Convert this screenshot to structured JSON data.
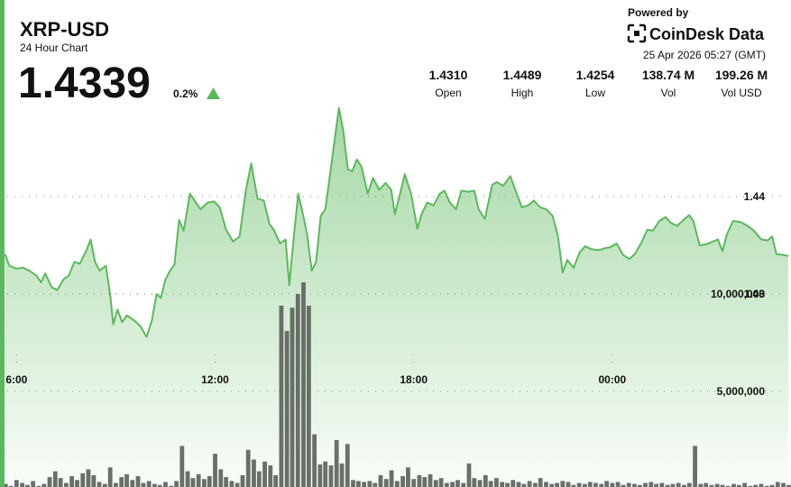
{
  "header": {
    "title": "XRP-USD",
    "subtitle": "24 Hour Chart",
    "price": "1.4339",
    "change": "0.2%"
  },
  "branding": {
    "powered_by": "Powered by",
    "brand": "CoinDesk Data",
    "timestamp": "25 Apr 2026 05:27 (GMT)"
  },
  "stats": [
    {
      "value": "1.4310",
      "label": "Open"
    },
    {
      "value": "1.4489",
      "label": "High"
    },
    {
      "value": "1.4254",
      "label": "Low"
    },
    {
      "value": "138.74 M",
      "label": "Vol"
    },
    {
      "value": "199.26 M",
      "label": "Vol USD"
    }
  ],
  "chart_data": [
    {
      "type": "area",
      "color": "#5cb85c",
      "grid": true,
      "xlim": [
        5.5,
        29.4
      ],
      "ylim": [
        1.41,
        1.45
      ],
      "xticks": [
        {
          "value": 6,
          "label": "6:00"
        },
        {
          "value": 12,
          "label": "12:00"
        },
        {
          "value": 18,
          "label": "18:00"
        },
        {
          "value": 24,
          "label": "00:00"
        }
      ],
      "yticks": [
        1.43,
        1.44
      ],
      "x": [
        5.65,
        5.78,
        6.0,
        6.19,
        6.38,
        6.6,
        6.74,
        6.87,
        7.06,
        7.23,
        7.42,
        7.58,
        7.75,
        7.91,
        8.1,
        8.24,
        8.37,
        8.51,
        8.7,
        8.84,
        8.92,
        9.05,
        9.19,
        9.33,
        9.55,
        9.74,
        9.93,
        10.09,
        10.23,
        10.36,
        10.5,
        10.64,
        10.77,
        10.91,
        11.05,
        11.24,
        11.4,
        11.56,
        11.78,
        11.97,
        12.14,
        12.33,
        12.54,
        12.74,
        12.93,
        13.09,
        13.28,
        13.47,
        13.64,
        13.77,
        13.96,
        14.13,
        14.24,
        14.37,
        14.51,
        14.64,
        14.78,
        14.92,
        15.05,
        15.19,
        15.33,
        15.54,
        15.74,
        15.87,
        16.01,
        16.14,
        16.28,
        16.42,
        16.61,
        16.77,
        16.96,
        17.15,
        17.32,
        17.43,
        17.59,
        17.73,
        17.92,
        18.11,
        18.24,
        18.41,
        18.6,
        18.79,
        18.93,
        19.09,
        19.28,
        19.44,
        19.64,
        19.83,
        19.96,
        20.15,
        20.37,
        20.51,
        20.7,
        20.92,
        21.11,
        21.27,
        21.46,
        21.63,
        21.82,
        22.01,
        22.2,
        22.36,
        22.5,
        22.64,
        22.83,
        23.02,
        23.18,
        23.37,
        23.59,
        23.78,
        23.94,
        24.13,
        24.33,
        24.52,
        24.68,
        24.87,
        25.06,
        25.23,
        25.42,
        25.61,
        25.77,
        25.96,
        26.15,
        26.32,
        26.45,
        26.64,
        26.83,
        27.05,
        27.19,
        27.33,
        27.46,
        27.65,
        27.87,
        28.09,
        28.28,
        28.5,
        28.69,
        28.83,
        28.96,
        29.18,
        29.32
      ],
      "values": [
        1.4341,
        1.4329,
        1.4326,
        1.4327,
        1.4324,
        1.4319,
        1.4312,
        1.4321,
        1.4307,
        1.4304,
        1.4315,
        1.4319,
        1.4333,
        1.4331,
        1.4344,
        1.4356,
        1.4333,
        1.4324,
        1.4329,
        1.4296,
        1.4269,
        1.4284,
        1.4271,
        1.4278,
        1.4273,
        1.4267,
        1.4256,
        1.4273,
        1.43,
        1.4296,
        1.4315,
        1.4324,
        1.433,
        1.4376,
        1.4365,
        1.4403,
        1.4395,
        1.4387,
        1.4394,
        1.4395,
        1.4389,
        1.4366,
        1.4354,
        1.4359,
        1.4407,
        1.4434,
        1.4398,
        1.4396,
        1.4372,
        1.4366,
        1.4352,
        1.4356,
        1.4309,
        1.4356,
        1.4403,
        1.4384,
        1.4361,
        1.4324,
        1.4333,
        1.438,
        1.4387,
        1.444,
        1.4491,
        1.4468,
        1.4428,
        1.4426,
        1.4438,
        1.4431,
        1.4403,
        1.4419,
        1.4407,
        1.4414,
        1.4407,
        1.4382,
        1.4403,
        1.4423,
        1.4403,
        1.4367,
        1.4382,
        1.4394,
        1.4391,
        1.4403,
        1.4406,
        1.4394,
        1.4387,
        1.4406,
        1.4405,
        1.4406,
        1.4387,
        1.4377,
        1.4412,
        1.4415,
        1.4411,
        1.4421,
        1.4403,
        1.4389,
        1.4391,
        1.4396,
        1.4389,
        1.4387,
        1.438,
        1.4359,
        1.4322,
        1.4335,
        1.4327,
        1.4343,
        1.4349,
        1.4346,
        1.4345,
        1.4347,
        1.4348,
        1.4352,
        1.434,
        1.4336,
        1.4341,
        1.4352,
        1.4366,
        1.4365,
        1.4375,
        1.4379,
        1.4373,
        1.437,
        1.4376,
        1.4381,
        1.4375,
        1.435,
        1.4351,
        1.4354,
        1.4356,
        1.4344,
        1.4361,
        1.4375,
        1.4374,
        1.437,
        1.4365,
        1.4356,
        1.4355,
        1.4359,
        1.4341,
        1.434,
        1.4339
      ]
    },
    {
      "type": "bar",
      "color": "#5d635d",
      "grid": true,
      "xlim": [
        5.5,
        29.4
      ],
      "ylim": [
        0,
        20000000
      ],
      "yticks": [
        {
          "value": 5000000,
          "label": "5,000,000"
        },
        {
          "value": 10000000,
          "label": "10,000,000"
        }
      ],
      "x": [
        5.5,
        5.67,
        5.83,
        6,
        6.17,
        6.33,
        6.5,
        6.67,
        6.83,
        7,
        7.17,
        7.33,
        7.5,
        7.67,
        7.83,
        8,
        8.17,
        8.33,
        8.5,
        8.67,
        8.83,
        9,
        9.17,
        9.33,
        9.5,
        9.67,
        9.83,
        10,
        10.17,
        10.33,
        10.5,
        10.67,
        10.83,
        11,
        11.17,
        11.33,
        11.5,
        11.67,
        11.83,
        12,
        12.17,
        12.33,
        12.5,
        12.67,
        12.83,
        13,
        13.17,
        13.33,
        13.5,
        13.67,
        13.83,
        14,
        14.17,
        14.33,
        14.5,
        14.67,
        14.83,
        15,
        15.17,
        15.33,
        15.5,
        15.67,
        15.83,
        16,
        16.17,
        16.33,
        16.5,
        16.67,
        16.83,
        17,
        17.17,
        17.33,
        17.5,
        17.67,
        17.83,
        18,
        18.17,
        18.33,
        18.5,
        18.67,
        18.83,
        19,
        19.17,
        19.33,
        19.5,
        19.67,
        19.83,
        20,
        20.17,
        20.33,
        20.5,
        20.67,
        20.83,
        21,
        21.17,
        21.33,
        21.5,
        21.67,
        21.83,
        22,
        22.17,
        22.33,
        22.5,
        22.67,
        22.83,
        23,
        23.17,
        23.33,
        23.5,
        23.67,
        23.83,
        24,
        24.17,
        24.33,
        24.5,
        24.67,
        24.83,
        25,
        25.17,
        25.33,
        25.5,
        25.67,
        25.83,
        26,
        26.17,
        26.33,
        26.5,
        26.67,
        26.83,
        27,
        27.17,
        27.33,
        27.5,
        27.67,
        27.83,
        28,
        28.17,
        28.33,
        28.5,
        28.67,
        28.83,
        29,
        29.17,
        29.33
      ],
      "values": [
        350000,
        250000,
        150000,
        450000,
        300000,
        200000,
        400000,
        150000,
        250000,
        600000,
        900000,
        550000,
        300000,
        650000,
        450000,
        800000,
        1000000,
        700000,
        350000,
        250000,
        1100000,
        300000,
        600000,
        750000,
        450000,
        650000,
        300000,
        400000,
        250000,
        200000,
        350000,
        150000,
        400000,
        2200000,
        900000,
        550000,
        750000,
        500000,
        650000,
        1800000,
        1000000,
        600000,
        400000,
        300000,
        700000,
        2000000,
        1500000,
        900000,
        1400000,
        1200000,
        700000,
        9400000,
        8100000,
        9300000,
        10000000,
        10600000,
        9400000,
        2800000,
        1250000,
        1400000,
        1200000,
        2500000,
        1300000,
        2300000,
        450000,
        400000,
        350000,
        400000,
        300000,
        700000,
        500000,
        950000,
        400000,
        650000,
        1100000,
        500000,
        700000,
        600000,
        750000,
        450000,
        550000,
        300000,
        350000,
        450000,
        300000,
        1300000,
        550000,
        450000,
        700000,
        400000,
        550000,
        350000,
        300000,
        450000,
        350000,
        250000,
        400000,
        300000,
        550000,
        350000,
        250000,
        300000,
        400000,
        350000,
        200000,
        300000,
        250000,
        350000,
        300000,
        250000,
        400000,
        300000,
        350000,
        200000,
        300000,
        250000,
        200000,
        300000,
        350000,
        250000,
        300000,
        200000,
        250000,
        300000,
        200000,
        300000,
        2200000,
        250000,
        300000,
        200000,
        250000,
        200000,
        150000,
        250000,
        200000,
        300000,
        150000,
        200000,
        250000,
        150000,
        200000,
        350000,
        300000,
        200000
      ]
    }
  ]
}
